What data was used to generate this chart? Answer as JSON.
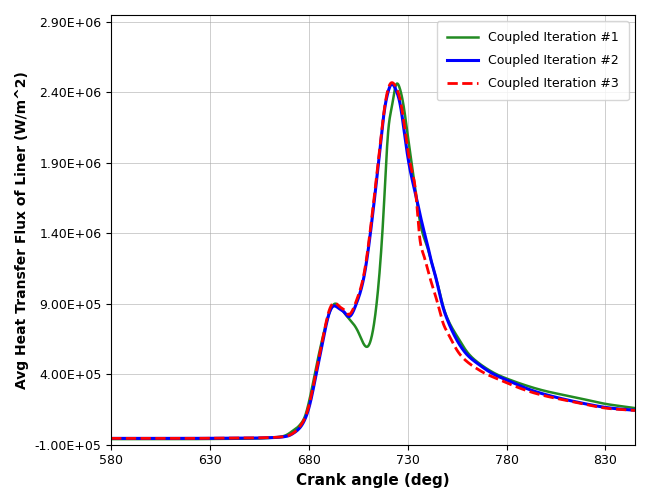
{
  "title": "",
  "xlabel": "Crank angle (deg)",
  "ylabel": "Avg Heat Transfer Flux of Liner (W/m^2)",
  "xlim": [
    580,
    845
  ],
  "ylim": [
    -100000.0,
    2950000.0
  ],
  "xticks": [
    580,
    630,
    680,
    730,
    780,
    830
  ],
  "yticks": [
    -100000.0,
    400000.0,
    900000.0,
    1400000.0,
    1900000.0,
    2400000.0,
    2900000.0
  ],
  "ytick_labels": [
    "-1.00E+05",
    "4.00E+05",
    "9.00E+05",
    "1.40E+06",
    "1.90E+06",
    "2.40E+06",
    "2.90E+06"
  ],
  "legend": [
    {
      "label": "Coupled Iteration #1",
      "color": "#228B22",
      "linestyle": "-",
      "linewidth": 1.8
    },
    {
      "label": "Coupled Iteration #2",
      "color": "#0000FF",
      "linestyle": "-",
      "linewidth": 2.2
    },
    {
      "label": "Coupled Iteration #3",
      "color": "#FF0000",
      "linestyle": "--",
      "linewidth": 2.0
    }
  ],
  "grid": true,
  "background_color": "#FFFFFF"
}
